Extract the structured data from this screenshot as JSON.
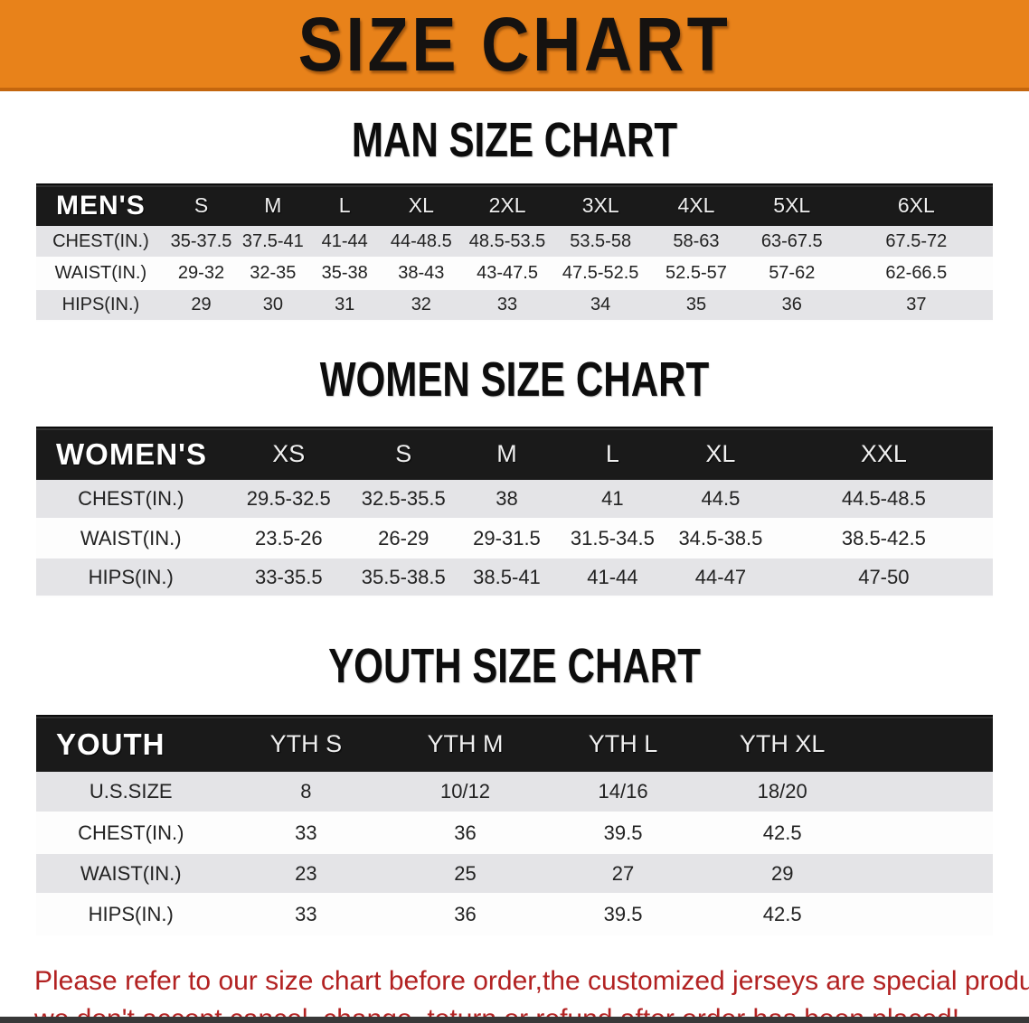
{
  "banner": {
    "title": "SIZE CHART",
    "bg_color": "#E8821A"
  },
  "sections": [
    {
      "title": "MAN SIZE CHART",
      "group_label": "MEN'S",
      "sizes": [
        "S",
        "M",
        "L",
        "XL",
        "2XL",
        "3XL",
        "4XL",
        "5XL",
        "6XL"
      ],
      "rows": [
        {
          "label": "CHEST(IN.)",
          "values": [
            "35-37.5",
            "37.5-41",
            "41-44",
            "44-48.5",
            "48.5-53.5",
            "53.5-58",
            "58-63",
            "63-67.5",
            "67.5-72"
          ]
        },
        {
          "label": "WAIST(IN.)",
          "values": [
            "29-32",
            "32-35",
            "35-38",
            "38-43",
            "43-47.5",
            "47.5-52.5",
            "52.5-57",
            "57-62",
            "62-66.5"
          ]
        },
        {
          "label": "HIPS(IN.)",
          "values": [
            "29",
            "30",
            "31",
            "32",
            "33",
            "34",
            "35",
            "36",
            "37"
          ]
        }
      ]
    },
    {
      "title": "WOMEN SIZE CHART",
      "group_label": "WOMEN'S",
      "sizes": [
        "XS",
        "S",
        "M",
        "L",
        "XL",
        "XXL"
      ],
      "rows": [
        {
          "label": "CHEST(IN.)",
          "values": [
            "29.5-32.5",
            "32.5-35.5",
            "38",
            "41",
            "44.5",
            "44.5-48.5"
          ]
        },
        {
          "label": "WAIST(IN.)",
          "values": [
            "23.5-26",
            "26-29",
            "29-31.5",
            "31.5-34.5",
            "34.5-38.5",
            "38.5-42.5"
          ]
        },
        {
          "label": "HIPS(IN.)",
          "values": [
            "33-35.5",
            "35.5-38.5",
            "38.5-41",
            "41-44",
            "44-47",
            "47-50"
          ]
        }
      ]
    },
    {
      "title": "YOUTH SIZE CHART",
      "group_label": "YOUTH",
      "sizes": [
        "YTH S",
        "YTH M",
        "YTH L",
        "YTH XL"
      ],
      "rows": [
        {
          "label": "U.S.SIZE",
          "values": [
            "8",
            "10/12",
            "14/16",
            "18/20"
          ]
        },
        {
          "label": "CHEST(IN.)",
          "values": [
            "33",
            "36",
            "39.5",
            "42.5"
          ]
        },
        {
          "label": "WAIST(IN.)",
          "values": [
            "23",
            "25",
            "27",
            "29"
          ]
        },
        {
          "label": "HIPS(IN.)",
          "values": [
            "33",
            "36",
            "39.5",
            "42.5"
          ]
        }
      ]
    }
  ],
  "note": {
    "color": "#B22222",
    "lines": [
      "Please refer to our size chart before order,the customized jerseys are special products,",
      "we don't accept cancel, change, teturn or refund after order has been placed!"
    ]
  }
}
